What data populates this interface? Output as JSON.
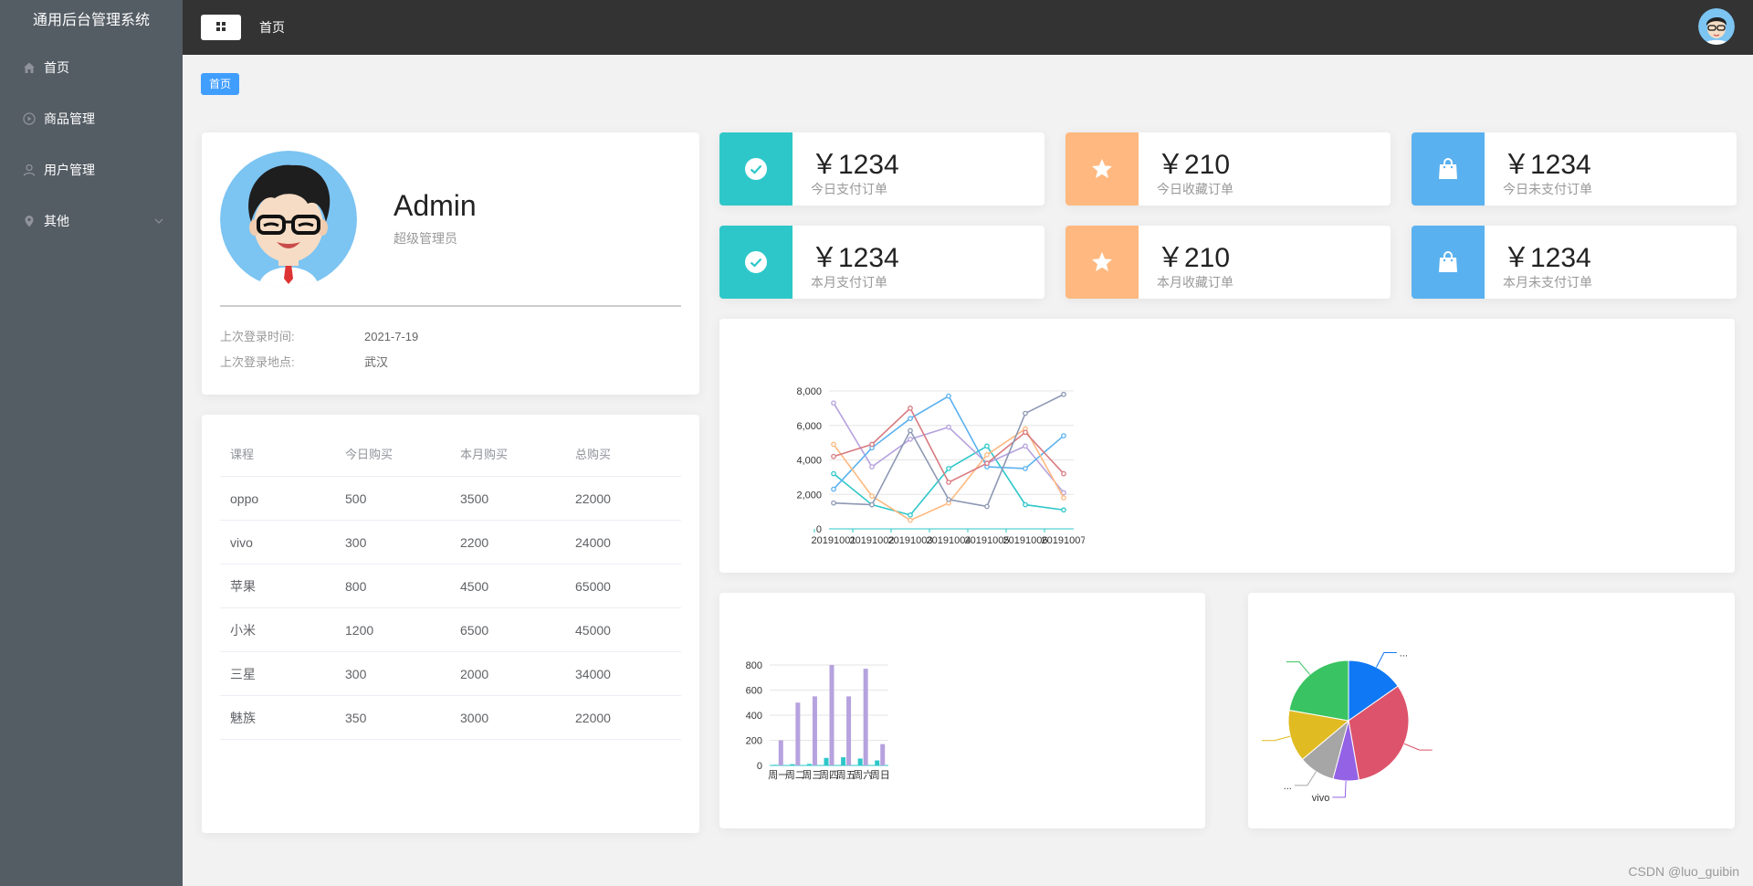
{
  "app": {
    "title": "通用后台管理系统"
  },
  "sidebar": {
    "items": [
      {
        "label": "首页",
        "icon": "home-icon"
      },
      {
        "label": "商品管理",
        "icon": "video-play-icon"
      },
      {
        "label": "用户管理",
        "icon": "user-icon"
      },
      {
        "label": "其他",
        "icon": "location-icon",
        "has_submenu": true
      }
    ]
  },
  "header": {
    "title": "首页"
  },
  "breadcrumb": {
    "tag": "首页"
  },
  "user": {
    "name": "Admin",
    "role": "超级管理员",
    "last_login_time_label": "上次登录时间:",
    "last_login_time": "2021-7-19",
    "last_login_place_label": "上次登录地点:",
    "last_login_place": "武汉"
  },
  "table": {
    "columns": [
      "课程",
      "今日购买",
      "本月购买",
      "总购买"
    ],
    "rows": [
      [
        "oppo",
        "500",
        "3500",
        "22000"
      ],
      [
        "vivo",
        "300",
        "2200",
        "24000"
      ],
      [
        "苹果",
        "800",
        "4500",
        "65000"
      ],
      [
        "小米",
        "1200",
        "6500",
        "45000"
      ],
      [
        "三星",
        "300",
        "2000",
        "34000"
      ],
      [
        "魅族",
        "350",
        "3000",
        "22000"
      ]
    ]
  },
  "stats": [
    {
      "value": "￥1234",
      "label": "今日支付订单",
      "color": "#2ec7c9",
      "icon": "check-circle-icon"
    },
    {
      "value": "￥210",
      "label": "今日收藏订单",
      "color": "#ffb980",
      "icon": "star-icon"
    },
    {
      "value": "￥1234",
      "label": "今日未支付订单",
      "color": "#5ab1ef",
      "icon": "shopping-bag-icon"
    },
    {
      "value": "￥1234",
      "label": "本月支付订单",
      "color": "#2ec7c9",
      "icon": "check-circle-icon"
    },
    {
      "value": "￥210",
      "label": "本月收藏订单",
      "color": "#ffb980",
      "icon": "star-icon"
    },
    {
      "value": "￥1234",
      "label": "本月未支付订单",
      "color": "#5ab1ef",
      "icon": "shopping-bag-icon"
    }
  ],
  "chart_data": [
    {
      "type": "line",
      "x": [
        "20191001",
        "20191002",
        "20191003",
        "20191004",
        "20191005",
        "20191006",
        "20191007"
      ],
      "ylim": [
        0,
        8000
      ],
      "yticks": [
        "0",
        "2,000",
        "4,000",
        "6,000",
        "8,000"
      ],
      "grid": true,
      "series": [
        {
          "color": "#2ec7c9",
          "values": [
            3200,
            1400,
            800,
            3500,
            4800,
            1400,
            1100
          ]
        },
        {
          "color": "#b6a2de",
          "values": [
            7300,
            3600,
            5200,
            5900,
            3800,
            4800,
            2100
          ]
        },
        {
          "color": "#5ab1ef",
          "values": [
            2300,
            4700,
            6400,
            7700,
            3600,
            3500,
            5400
          ]
        },
        {
          "color": "#ffb980",
          "values": [
            4900,
            1900,
            500,
            1500,
            4300,
            5800,
            1800
          ]
        },
        {
          "color": "#d87a80",
          "values": [
            4200,
            4900,
            7000,
            2700,
            3800,
            5600,
            3200
          ]
        },
        {
          "color": "#8d98b3",
          "values": [
            1500,
            1400,
            5700,
            1700,
            1300,
            6700,
            7800
          ]
        }
      ]
    },
    {
      "type": "bar",
      "categories": [
        "周一",
        "周二",
        "周三",
        "周四",
        "周五",
        "周六",
        "周日"
      ],
      "ylim": [
        0,
        800
      ],
      "yticks": [
        "0",
        "200",
        "400",
        "600",
        "800"
      ],
      "grid": true,
      "series": [
        {
          "color": "#2ec7c9",
          "values": [
            5,
            10,
            12,
            60,
            65,
            55,
            40
          ]
        },
        {
          "color": "#b6a2de",
          "values": [
            200,
            500,
            550,
            800,
            550,
            770,
            170
          ]
        }
      ]
    },
    {
      "type": "pie",
      "slices": [
        {
          "label": "...",
          "value": 110,
          "color": "#0f78f4"
        },
        {
          "label": "",
          "value": 230,
          "color": "#dd536b"
        },
        {
          "label": "vivo",
          "value": 50,
          "color": "#9462e5"
        },
        {
          "label": "...",
          "value": 70,
          "color": "#a6a6a6"
        },
        {
          "label": "",
          "value": 100,
          "color": "#e1bb22"
        },
        {
          "label": "",
          "value": 160,
          "color": "#39c362"
        }
      ]
    }
  ],
  "watermark": "CSDN @luo_guibin"
}
